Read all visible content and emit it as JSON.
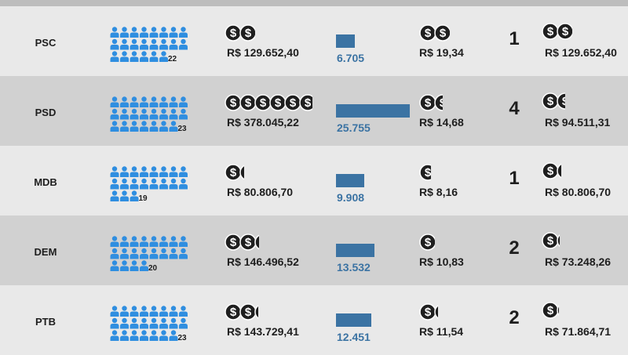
{
  "colors": {
    "people": "#2f8ee0",
    "bar": "#3b73a3",
    "coin": "#1f1f1f",
    "row_light": "#e9e9e9",
    "row_dark": "#d1d1d1"
  },
  "icons": {
    "people": "person-icon",
    "money": "dollar-coin-icon"
  },
  "chart_data": {
    "type": "table",
    "columns": [
      "party",
      "candidates",
      "spending",
      "votes",
      "cost_per_vote",
      "elected",
      "spending_per_elected"
    ],
    "rows": [
      {
        "party": "PSC",
        "candidates": 22,
        "spending": "R$ 129.652,40",
        "spending_coins": 2,
        "votes": 6705,
        "votes_label": "6.705",
        "cost_per_vote": "R$ 19,34",
        "cost_per_vote_coins": 2,
        "elected": 1,
        "elected_label": "1",
        "spending_per_elected": "R$ 129.652,40",
        "spending_per_elected_coins": 2
      },
      {
        "party": "PSD",
        "candidates": 23,
        "spending": "R$ 378.045,22",
        "spending_coins": 5.8,
        "votes": 25755,
        "votes_label": "25.755",
        "cost_per_vote": "R$ 14,68",
        "cost_per_vote_coins": 1.5,
        "elected": 4,
        "elected_label": "4",
        "spending_per_elected": "R$ 94.511,31",
        "spending_per_elected_coins": 1.5
      },
      {
        "party": "MDB",
        "candidates": 19,
        "spending": "R$ 80.806,70",
        "spending_coins": 1.25,
        "votes": 9908,
        "votes_label": "9.908",
        "cost_per_vote": "R$ 8,16",
        "cost_per_vote_coins": 0.85,
        "elected": 1,
        "elected_label": "1",
        "spending_per_elected": "R$ 80.806,70",
        "spending_per_elected_coins": 1.25
      },
      {
        "party": "DEM",
        "candidates": 20,
        "spending": "R$ 146.496,52",
        "spending_coins": 2.25,
        "votes": 13532,
        "votes_label": "13.532",
        "cost_per_vote": "R$ 10,83",
        "cost_per_vote_coins": 1,
        "elected": 2,
        "elected_label": "2",
        "spending_per_elected": "R$ 73.248,26",
        "spending_per_elected_coins": 1.15
      },
      {
        "party": "PTB",
        "candidates": 23,
        "spending": "R$ 143.729,41",
        "spending_coins": 2.2,
        "votes": 12451,
        "votes_label": "12.451",
        "cost_per_vote": "R$ 11,54",
        "cost_per_vote_coins": 1.2,
        "elected": 2,
        "elected_label": "2",
        "spending_per_elected": "R$ 71.864,71",
        "spending_per_elected_coins": 1.1
      }
    ]
  }
}
